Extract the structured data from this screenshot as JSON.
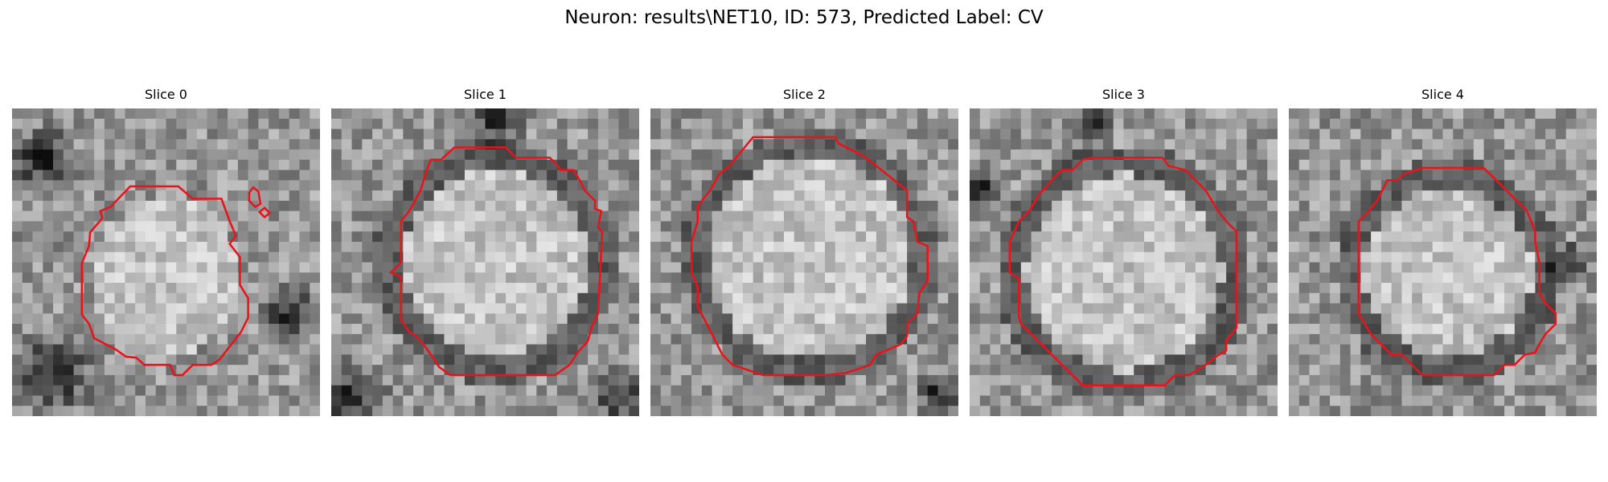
{
  "figure": {
    "title": "Neuron: results\\NET10, ID: 573, Predicted Label: CV"
  },
  "panels": [
    {
      "title": "Slice 0"
    },
    {
      "title": "Slice 1"
    },
    {
      "title": "Slice 2"
    },
    {
      "title": "Slice 3"
    },
    {
      "title": "Slice 4"
    }
  ],
  "colors": {
    "contour": "#e8141c",
    "background": "#ffffff"
  }
}
